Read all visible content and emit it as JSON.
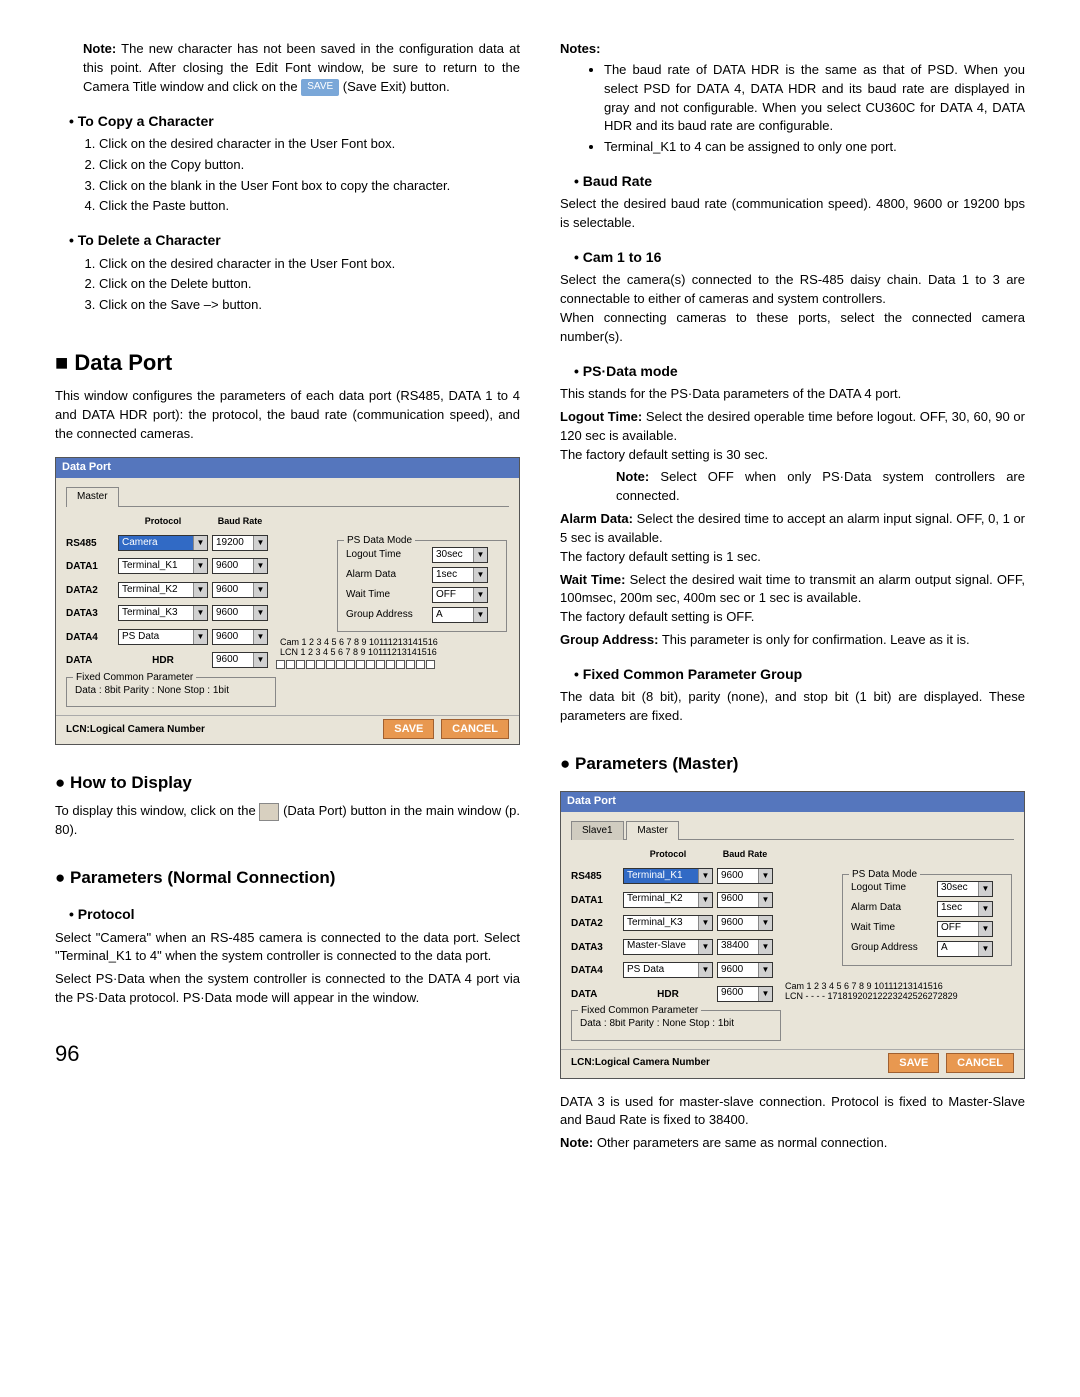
{
  "left": {
    "note_intro": "Note:",
    "note_body": " The new character has not been saved in the configuration data at this point. After closing the Edit Font window, be sure to return to the Camera Title window and click on the ",
    "save_label": "SAVE",
    "note_tail": " (Save Exit) button.",
    "copy_head": "To Copy a Character",
    "copy_steps": [
      "Click on the desired character in the User Font box.",
      "Click on the Copy button.",
      "Click on the blank in the User Font box to copy the character.",
      "Click the Paste button."
    ],
    "del_head": "To Delete a Character",
    "del_steps": [
      "Click on the desired character in the User Font box.",
      "Click on the Delete button.",
      "Click on the Save –> button."
    ],
    "data_port_h1": "Data Port",
    "data_port_body": "This window configures the parameters of each data port (RS485, DATA 1 to 4 and DATA HDR port): the protocol, the baud rate (communication speed), and the connected cameras.",
    "how_h2": "How to Display",
    "how_body_1": "To display this window, click on the ",
    "how_body_2": " (Data Port) button in the main window (p. 80).",
    "params_normal_h2": "Parameters (Normal Connection)",
    "protocol_head": "Protocol",
    "protocol_p1": "Select \"Camera\" when an RS-485 camera is connected to the data port. Select \"Terminal_K1 to 4\" when the system controller is connected to the data port.",
    "protocol_p2": "Select PS·Data when the system controller is connected to the DATA 4 port via the PS·Data protocol. PS·Data mode will appear in the window.",
    "page_num": "96"
  },
  "right": {
    "notes_head": "Notes:",
    "notes_items": [
      "The baud rate of DATA HDR is the same as that of PSD. When you select PSD for DATA 4, DATA HDR and its baud rate are displayed in gray and not configurable. When you select CU360C for DATA 4, DATA HDR and its baud rate are configurable.",
      "Terminal_K1 to 4 can be assigned to only one port."
    ],
    "baud_head": "Baud Rate",
    "baud_body": "Select the desired baud rate (communication speed). 4800, 9600 or 19200 bps is selectable.",
    "cam_head": "Cam 1 to 16",
    "cam_body": "Select the camera(s) connected to the RS-485 daisy chain. Data 1 to 3 are connectable to either of cameras and system controllers.\nWhen connecting cameras to these ports, select the connected camera number(s).",
    "psd_head": "PS·Data mode",
    "psd_intro": "This stands for the PS·Data parameters of the DATA 4 port.",
    "psd_items": [
      {
        "term": "Logout Time:",
        "body": " Select the desired operable time before logout. OFF, 30, 60, 90 or 120 sec is available.\nThe factory default setting is 30 sec.",
        "note": "Note:",
        "note_body": " Select OFF when only PS·Data system controllers are connected."
      },
      {
        "term": "Alarm Data:",
        "body": " Select the desired time to accept an alarm input signal. OFF, 0, 1 or 5 sec is available.\nThe factory default setting is 1 sec."
      },
      {
        "term": "Wait Time:",
        "body": " Select the desired wait time to transmit an alarm output signal. OFF, 100msec, 200m sec, 400m sec or 1 sec is available.\nThe factory default setting is OFF."
      },
      {
        "term": "Group Address:",
        "body": " This parameter is only for confirmation. Leave as it is."
      }
    ],
    "fixed_head": "Fixed Common Parameter Group",
    "fixed_body": "The data bit (8 bit), parity (none), and stop bit (1 bit) are displayed. These parameters are fixed.",
    "params_master_h2": "Parameters (Master)",
    "master_body": "DATA 3 is used for master-slave connection. Protocol is fixed to Master-Slave and Baud Rate is fixed to 38400.",
    "master_note_prefix": "Note:",
    "master_note": " Other parameters are same as normal connection."
  },
  "win1": {
    "title": "Data Port",
    "tab": "Master",
    "hdr_protocol": "Protocol",
    "hdr_baud": "Baud Rate",
    "cam_line1": "Cam 1  2  3  4  5  6  7  8  9 10111213141516",
    "cam_line2": "LCN 1  2  3  4  5  6  7  8  9 10111213141516",
    "rows": [
      {
        "lbl": "RS485",
        "proto": "Camera",
        "baud": "19200",
        "sel": true
      },
      {
        "lbl": "DATA1",
        "proto": "Terminal_K1",
        "baud": "9600"
      },
      {
        "lbl": "DATA2",
        "proto": "Terminal_K2",
        "baud": "9600"
      },
      {
        "lbl": "DATA3",
        "proto": "Terminal_K3",
        "baud": "9600"
      },
      {
        "lbl": "DATA4",
        "proto": "PS Data",
        "baud": "9600"
      },
      {
        "lbl": "DATA",
        "proto": "HDR",
        "baud": "9600",
        "noProto": true
      }
    ],
    "ps_legend": "PS Data Mode",
    "ps_rows": [
      {
        "k": "Logout Time",
        "v": "30sec"
      },
      {
        "k": "Alarm Data",
        "v": "1sec"
      },
      {
        "k": "Wait Time",
        "v": "OFF"
      },
      {
        "k": "Group Address",
        "v": "A"
      }
    ],
    "fixed_legend": "Fixed Common Parameter",
    "fixed_text": "Data : 8bit   Parity : None   Stop : 1bit",
    "lcn": "LCN:Logical Camera Number",
    "save": "SAVE",
    "cancel": "CANCEL"
  },
  "win2": {
    "title": "Data Port",
    "tab_inactive": "Slave1",
    "tab_active": "Master",
    "hdr_protocol": "Protocol",
    "hdr_baud": "Baud Rate",
    "cam_line1": "Cam 1  2  3  4  5  6  7  8  9 10111213141516",
    "cam_line2": "LCN  -  -  -  - 17181920212223242526272829",
    "rows": [
      {
        "lbl": "RS485",
        "proto": "Terminal_K1",
        "baud": "9600",
        "sel": true
      },
      {
        "lbl": "DATA1",
        "proto": "Terminal_K2",
        "baud": "9600"
      },
      {
        "lbl": "DATA2",
        "proto": "Terminal_K3",
        "baud": "9600"
      },
      {
        "lbl": "DATA3",
        "proto": "Master-Slave",
        "baud": "38400"
      },
      {
        "lbl": "DATA4",
        "proto": "PS Data",
        "baud": "9600"
      },
      {
        "lbl": "DATA",
        "proto": "HDR",
        "baud": "9600",
        "noProto": true
      }
    ],
    "ps_legend": "PS Data Mode",
    "ps_rows": [
      {
        "k": "Logout Time",
        "v": "30sec"
      },
      {
        "k": "Alarm Data",
        "v": "1sec"
      },
      {
        "k": "Wait Time",
        "v": "OFF"
      },
      {
        "k": "Group Address",
        "v": "A"
      }
    ],
    "fixed_legend": "Fixed Common Parameter",
    "fixed_text": "Data : 8bit   Parity : None   Stop : 1bit",
    "lcn": "LCN:Logical Camera Number",
    "save": "SAVE",
    "cancel": "CANCEL"
  }
}
